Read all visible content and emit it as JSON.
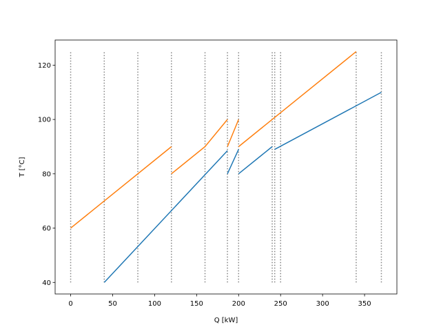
{
  "chart_data": {
    "type": "line",
    "xlabel": "Q [kW]",
    "ylabel": "T [°C]",
    "xlim": [
      -18.5,
      388.5
    ],
    "ylim": [
      35.75,
      129.25
    ],
    "xticks": [
      0,
      50,
      100,
      150,
      200,
      250,
      300,
      350
    ],
    "yticks": [
      40,
      60,
      80,
      100,
      120
    ],
    "vlines": {
      "x": [
        0,
        40,
        80,
        120,
        160,
        186.7,
        200,
        240,
        243,
        250,
        340,
        370
      ],
      "ymin": 40,
      "ymax": 125,
      "color": "#808080"
    },
    "series": [
      {
        "color": "#1f77b4",
        "x": [
          40,
          186.7,
          null,
          186.7,
          200,
          null,
          200,
          240,
          null,
          243,
          370
        ],
        "values": [
          40,
          88.5,
          null,
          80,
          89,
          null,
          80,
          90,
          null,
          89,
          110
        ]
      },
      {
        "color": "#ff7f0e",
        "x": [
          0,
          120,
          null,
          120,
          160,
          186.7,
          null,
          186.7,
          200,
          null,
          200,
          340
        ],
        "values": [
          60,
          90,
          null,
          80,
          90,
          100,
          null,
          90,
          100,
          null,
          90,
          125
        ]
      }
    ]
  }
}
